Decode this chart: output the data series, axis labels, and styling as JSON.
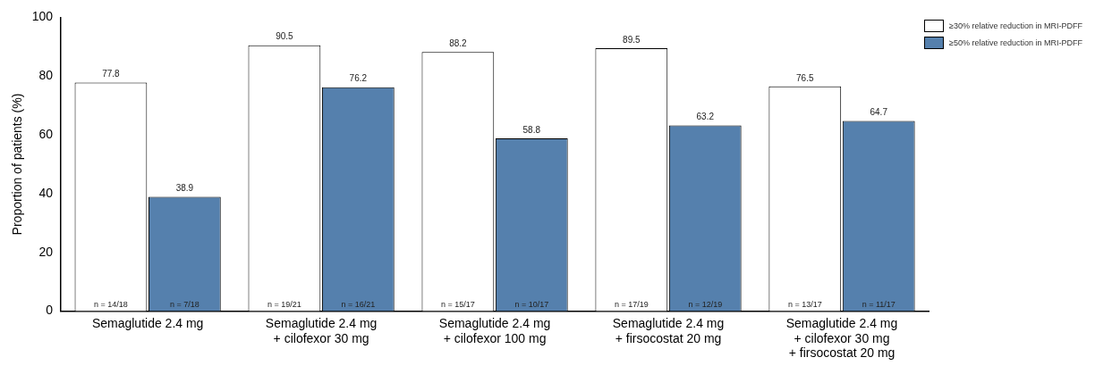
{
  "chart_data": {
    "type": "bar",
    "ylabel": "Proportion of patients (%)",
    "categories": [
      "Semaglutide 2.4 mg",
      "Semaglutide 2.4 mg\n+ cilofexor 30 mg",
      "Semaglutide 2.4 mg\n+ cilofexor 100 mg",
      "Semaglutide 2.4 mg\n+ firsocostat 20 mg",
      "Semaglutide 2.4 mg\n+ cilofexor 30 mg\n+ firsocostat 20 mg"
    ],
    "series": [
      {
        "name": "≥30% relative reduction in MRI-PDFF",
        "color": "#ffffff",
        "values": [
          77.8,
          90.5,
          88.2,
          89.5,
          76.5
        ]
      },
      {
        "name": "≥50% relative reduction in MRI-PDFF",
        "color": "#5580ad",
        "values": [
          38.9,
          76.2,
          58.8,
          63.2,
          64.7
        ]
      }
    ],
    "ylim": [
      0,
      100
    ],
    "yticks": [
      0,
      20,
      40,
      60,
      80,
      100
    ],
    "grid": false,
    "legend": "top right",
    "data_labels": true,
    "annotations": [
      "n = 14/18",
      "n = 7/18",
      "n = 19/21",
      "n = 16/21",
      "n = 15/17",
      "n = 10/17",
      "n = 17/19",
      "n = 12/19",
      "n = 13/17",
      "n = 11/17"
    ]
  }
}
